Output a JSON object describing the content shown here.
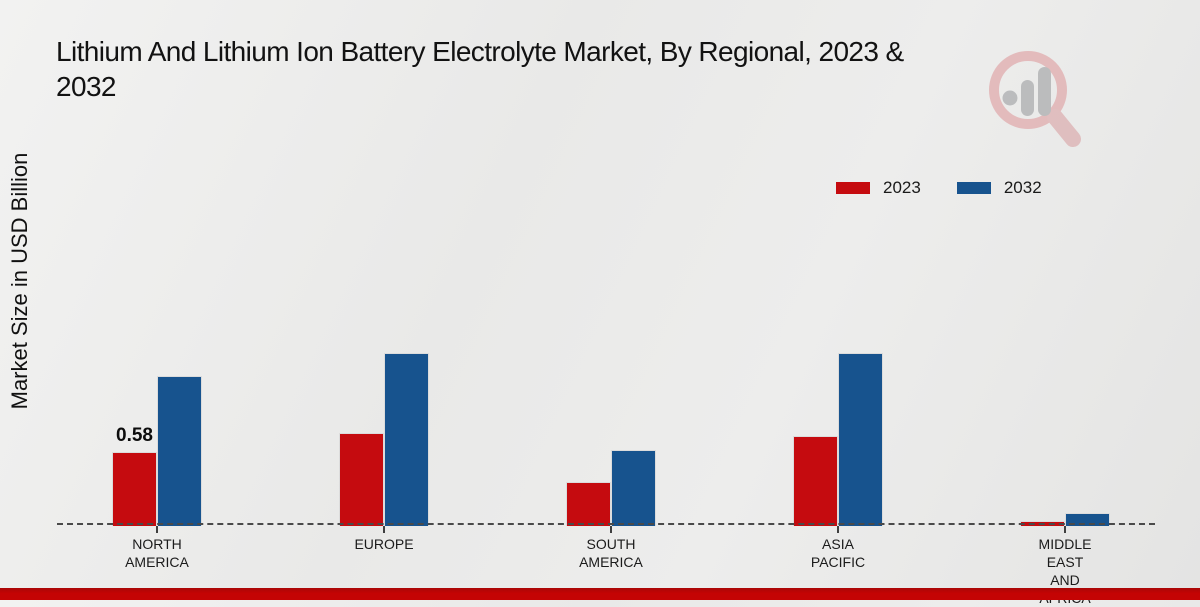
{
  "header": {
    "title": "Lithium And Lithium Ion Battery Electrolyte Market, By Regional, 2023 &\n2032"
  },
  "axes": {
    "y_label": "Market Size in USD Billion"
  },
  "legend": {
    "items": [
      {
        "label": "2023",
        "color": "#c50b0f"
      },
      {
        "label": "2032",
        "color": "#17538e"
      }
    ]
  },
  "watermark": {
    "name": "market-research-future-logo",
    "ring_color": "#e0a9ab",
    "bars_color": "#a9abad"
  },
  "footer": {
    "color": "#c40404"
  },
  "chart_data": {
    "type": "bar",
    "title": "Lithium And Lithium Ion Battery Electrolyte Market, By Regional, 2023 & 2032",
    "xlabel": "",
    "ylabel": "Market Size in USD Billion",
    "categories": [
      "NORTH AMERICA",
      "EUROPE",
      "SOUTH AMERICA",
      "ASIA PACIFIC",
      "MIDDLE EAST AND AFRICA"
    ],
    "tick_label_lines": [
      [
        "NORTH",
        "AMERICA"
      ],
      [
        "EUROPE"
      ],
      [
        "SOUTH",
        "AMERICA"
      ],
      [
        "ASIA",
        "PACIFIC"
      ],
      [
        "MIDDLE",
        "EAST",
        "AND",
        "AFRICA"
      ]
    ],
    "series": [
      {
        "name": "2023",
        "color": "#c50b0f",
        "values": [
          0.58,
          0.73,
          0.34,
          0.7,
          0.04
        ]
      },
      {
        "name": "2032",
        "color": "#17538e",
        "values": [
          1.17,
          1.35,
          0.59,
          1.35,
          0.1
        ]
      }
    ],
    "annotations": [
      {
        "series_index": 0,
        "category_index": 0,
        "text": "0.58"
      }
    ],
    "ylim": [
      0,
      1.5
    ],
    "grid": false,
    "y_axis_ticks_visible": false,
    "legend_position": "upper right",
    "baseline_style": "dashed"
  }
}
